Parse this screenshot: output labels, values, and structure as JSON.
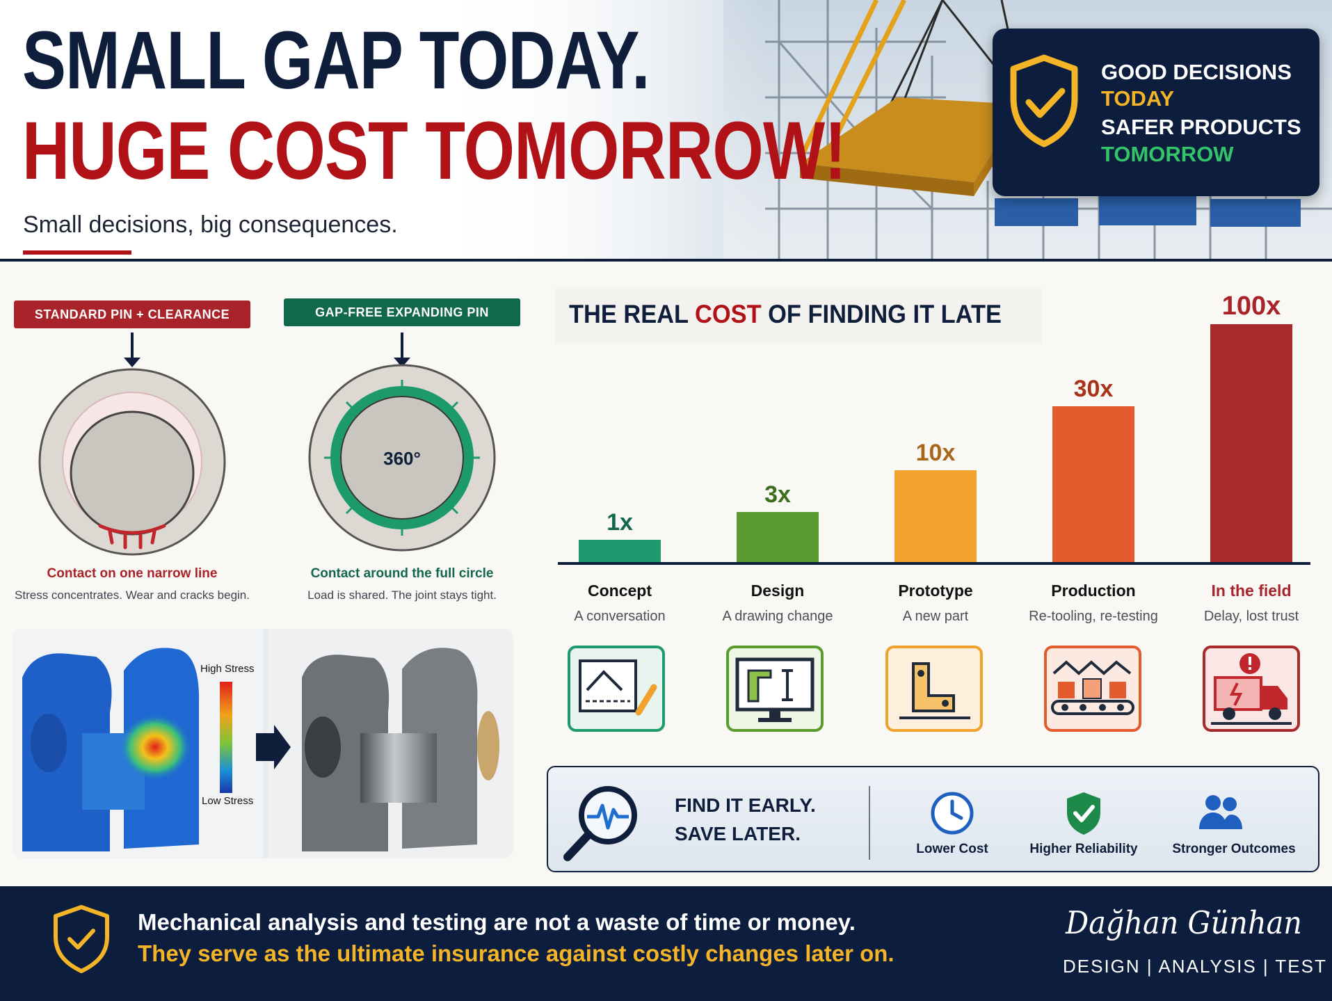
{
  "hero": {
    "headline_line1": "SMALL GAP TODAY.",
    "headline_line2": "HUGE COST TOMORROW!",
    "subheadline": "Small decisions, big consequences.",
    "badge": {
      "icon": "shield-check-icon",
      "line1": "GOOD DECISIONS",
      "line2": "TODAY",
      "line3": "SAFER PRODUCTS",
      "line4": "TOMORROW"
    }
  },
  "pins": {
    "standard": {
      "tag": "STANDARD PIN + CLEARANCE",
      "caption": "Contact on one narrow line",
      "description": "Stress concentrates. Wear and cracks begin."
    },
    "expanding": {
      "tag": "GAP-FREE EXPANDING PIN",
      "center_label": "360°",
      "caption": "Contact around the full circle",
      "description": "Load is shared. The joint stays tight."
    },
    "simulation": {
      "legend_high": "High Stress",
      "legend_low": "Low Stress"
    }
  },
  "cost": {
    "title_part1": "THE REAL ",
    "title_accent": "COST",
    "title_part2": " OF FINDING IT LATE",
    "stages": [
      {
        "name": "Concept",
        "description": "A conversation",
        "multiplier_label": "1x",
        "icon": "concept-sketch-icon"
      },
      {
        "name": "Design",
        "description": "A drawing change",
        "multiplier_label": "3x",
        "icon": "cad-monitor-icon"
      },
      {
        "name": "Prototype",
        "description": "A new part",
        "multiplier_label": "10x",
        "icon": "bracket-part-icon"
      },
      {
        "name": "Production",
        "description": "Re-tooling, re-testing",
        "multiplier_label": "30x",
        "icon": "conveyor-line-icon"
      },
      {
        "name": "In the field",
        "description": "Delay, lost trust",
        "multiplier_label": "100x",
        "icon": "truck-alert-icon"
      }
    ],
    "colors": [
      "#1f9a6e",
      "#5a9a2e",
      "#f0a22c",
      "#e35b2c",
      "#a82a2a"
    ]
  },
  "early": {
    "line1": "FIND IT EARLY.",
    "line2": "SAVE LATER.",
    "icon": "magnifier-pulse-icon",
    "benefits": [
      {
        "label": "Lower Cost",
        "icon": "clock-icon"
      },
      {
        "label": "Higher Reliability",
        "icon": "shield-check-icon"
      },
      {
        "label": "Stronger Outcomes",
        "icon": "people-icon"
      }
    ]
  },
  "footer": {
    "line1": "Mechanical analysis and testing are not a waste of time or money.",
    "line2": "They serve as the ultimate insurance against costly changes later on.",
    "signature": "Dağhan Günhan",
    "tagline": "DESIGN | ANALYSIS | TEST"
  }
}
